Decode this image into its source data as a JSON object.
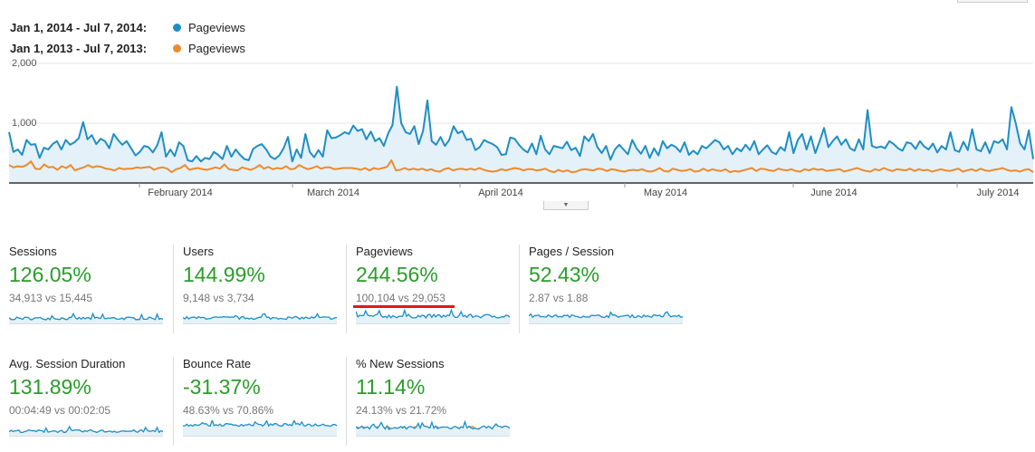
{
  "legend": [
    {
      "range": "Jan 1, 2014 - Jul 7, 2014:",
      "label": "Pageviews",
      "color": "#1f8ec5"
    },
    {
      "range": "Jan 1, 2013 - Jul 7, 2013:",
      "label": "Pageviews",
      "color": "#ed8a2c"
    }
  ],
  "chart_data": {
    "type": "line",
    "ylim": [
      0,
      2000
    ],
    "yticks": [
      "2,000",
      "1,000"
    ],
    "xlabels": [
      "February 2014",
      "March 2014",
      "April 2014",
      "May 2014",
      "June 2014",
      "July 2014"
    ],
    "series": [
      {
        "name": "Pageviews",
        "color": "#1f8ec5",
        "values": [
          850,
          520,
          560,
          470,
          720,
          640,
          650,
          420,
          590,
          560,
          650,
          700,
          560,
          720,
          640,
          680,
          750,
          1020,
          730,
          800,
          650,
          740,
          700,
          580,
          820,
          720,
          640,
          700,
          580,
          460,
          520,
          620,
          600,
          510,
          630,
          850,
          440,
          560,
          450,
          680,
          620,
          380,
          360,
          450,
          360,
          420,
          400,
          520,
          470,
          400,
          620,
          440,
          560,
          470,
          400,
          380,
          570,
          620,
          650,
          560,
          440,
          400,
          460,
          580,
          770,
          360,
          560,
          420,
          820,
          520,
          430,
          550,
          440,
          880,
          750,
          760,
          800,
          850,
          820,
          960,
          870,
          900,
          730,
          860,
          700,
          750,
          620,
          830,
          970,
          1610,
          1000,
          850,
          820,
          950,
          650,
          870,
          1380,
          700,
          640,
          770,
          620,
          720,
          950,
          830,
          870,
          720,
          740,
          550,
          600,
          720,
          680,
          650,
          600,
          470,
          480,
          760,
          740,
          640,
          560,
          510,
          660,
          480,
          790,
          560,
          480,
          620,
          600,
          580,
          690,
          550,
          590,
          450,
          780,
          700,
          820,
          600,
          500,
          620,
          390,
          560,
          640,
          560,
          480,
          720,
          580,
          490,
          620,
          420,
          580,
          460,
          700,
          580,
          640,
          600,
          520,
          680,
          470,
          540,
          480,
          620,
          580,
          650,
          720,
          680,
          560,
          620,
          480,
          580,
          530,
          640,
          550,
          700,
          480,
          560,
          630,
          520,
          480,
          600,
          540,
          850,
          500,
          720,
          820,
          560,
          780,
          500,
          700,
          920,
          600,
          700,
          780,
          640,
          730,
          580,
          540,
          730,
          560,
          1220,
          620,
          590,
          610,
          580,
          700,
          650,
          580,
          540,
          680,
          660,
          570,
          700,
          610,
          560,
          660,
          510,
          620,
          560,
          850,
          550,
          520,
          690,
          550,
          900,
          560,
          530,
          680,
          500,
          700,
          670,
          730,
          560,
          1270,
          1000,
          660,
          560,
          880,
          400
        ]
      },
      {
        "name": "Pageviews",
        "color": "#ed8a2c",
        "values": [
          300,
          260,
          280,
          270,
          300,
          360,
          240,
          230,
          310,
          260,
          270,
          220,
          280,
          250,
          300,
          210,
          240,
          260,
          300,
          260,
          280,
          270,
          240,
          230,
          210,
          250,
          230,
          240,
          240,
          260,
          250,
          260,
          270,
          220,
          250,
          260,
          240,
          180,
          230,
          250,
          300,
          220,
          240,
          250,
          230,
          220,
          240,
          260,
          240,
          310,
          230,
          220,
          210,
          260,
          240,
          220,
          250,
          300,
          240,
          270,
          230,
          250,
          240,
          280,
          230,
          240,
          300,
          260,
          230,
          250,
          280,
          240,
          260,
          260,
          230,
          240,
          250,
          250,
          250,
          240,
          220,
          250,
          210,
          250,
          230,
          250,
          270,
          380,
          210,
          220,
          250,
          220,
          240,
          220,
          240,
          210,
          230,
          200,
          190,
          230,
          250,
          210,
          230,
          240,
          220,
          240,
          220,
          250,
          220,
          200,
          190,
          200,
          230,
          210,
          230,
          250,
          240,
          210,
          230,
          230,
          210,
          220,
          240,
          200,
          180,
          220,
          190,
          210,
          180,
          190,
          220,
          230,
          220,
          210,
          240,
          230,
          200,
          230,
          220,
          200,
          190,
          210,
          220,
          210,
          230,
          200,
          190,
          210,
          250,
          200,
          190,
          240,
          220,
          200,
          210,
          230,
          190,
          200,
          240,
          200,
          230,
          210,
          200,
          230,
          180,
          200,
          190,
          210,
          230,
          250,
          200,
          240,
          230,
          210,
          200,
          240,
          220,
          210,
          230,
          200,
          190,
          230,
          210,
          240,
          220,
          230,
          200,
          210,
          220,
          230,
          190,
          210,
          230,
          250,
          220,
          200,
          190,
          230,
          210,
          250,
          220,
          200,
          230,
          220,
          210,
          240,
          200,
          230,
          210,
          220,
          190,
          210,
          230,
          210,
          200,
          220,
          240,
          190,
          210,
          230,
          200,
          240,
          210,
          200,
          220,
          230,
          250,
          220,
          200,
          210,
          190,
          220,
          230,
          180
        ]
      }
    ]
  },
  "metrics": [
    {
      "name": "Sessions",
      "pct": "126.05%",
      "cmp": "34,913 vs 15,445"
    },
    {
      "name": "Users",
      "pct": "144.99%",
      "cmp": "9,148 vs 3,734"
    },
    {
      "name": "Pageviews",
      "pct": "244.56%",
      "cmp": "100,104 vs 29,053"
    },
    {
      "name": "Pages / Session",
      "pct": "52.43%",
      "cmp": "2.87 vs 1.88"
    },
    {
      "name": "Avg. Session Duration",
      "pct": "131.89%",
      "cmp": "00:04:49 vs 00:02:05"
    },
    {
      "name": "Bounce Rate",
      "pct": "-31.37%",
      "cmp": "48.63% vs 70.86%"
    },
    {
      "name": "% New Sessions",
      "pct": "11.14%",
      "cmp": "24.13% vs 21.72%"
    }
  ]
}
